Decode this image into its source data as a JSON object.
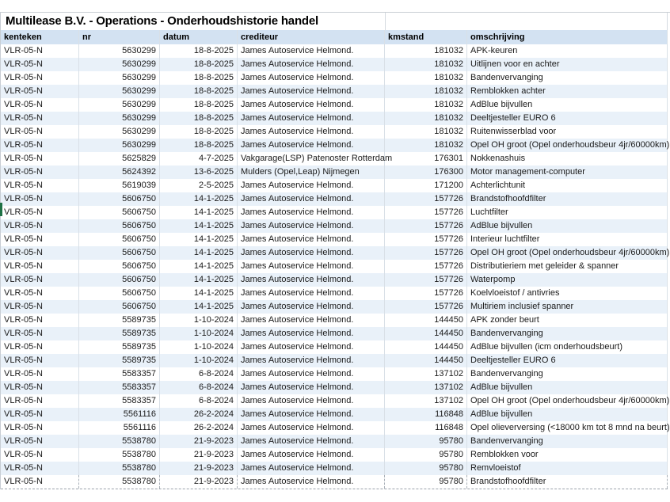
{
  "title": "Multilease B.V. - Operations - Onderhoudshistorie handel",
  "colors": {
    "header_bg": "#d3e2f2",
    "row_band_bg": "#e9f1f9",
    "grid_line": "#d9e0e7",
    "row_marker_green": "#1e7145"
  },
  "table": {
    "columns": [
      {
        "key": "kenteken",
        "label": "kenteken",
        "align": "left"
      },
      {
        "key": "nr",
        "label": "nr",
        "align": "right"
      },
      {
        "key": "datum",
        "label": "datum",
        "align": "right"
      },
      {
        "key": "crediteur",
        "label": "crediteur",
        "align": "left"
      },
      {
        "key": "kmstand",
        "label": "kmstand",
        "align": "right"
      },
      {
        "key": "omschrijving",
        "label": "omschrijving",
        "align": "left"
      }
    ],
    "header_align_override": {
      "nr": "left",
      "datum": "left",
      "kmstand": "left"
    },
    "rows": [
      [
        "VLR-05-N",
        "5630299",
        "18-8-2025",
        "James Autoservice Helmond.",
        "181032",
        "APK-keuren"
      ],
      [
        "VLR-05-N",
        "5630299",
        "18-8-2025",
        "James Autoservice Helmond.",
        "181032",
        "Uitlijnen voor en achter"
      ],
      [
        "VLR-05-N",
        "5630299",
        "18-8-2025",
        "James Autoservice Helmond.",
        "181032",
        "Bandenvervanging"
      ],
      [
        "VLR-05-N",
        "5630299",
        "18-8-2025",
        "James Autoservice Helmond.",
        "181032",
        "Remblokken achter"
      ],
      [
        "VLR-05-N",
        "5630299",
        "18-8-2025",
        "James Autoservice Helmond.",
        "181032",
        "AdBlue bijvullen"
      ],
      [
        "VLR-05-N",
        "5630299",
        "18-8-2025",
        "James Autoservice Helmond.",
        "181032",
        "Deeltjesteller EURO 6"
      ],
      [
        "VLR-05-N",
        "5630299",
        "18-8-2025",
        "James Autoservice Helmond.",
        "181032",
        "Ruitenwisserblad voor"
      ],
      [
        "VLR-05-N",
        "5630299",
        "18-8-2025",
        "James Autoservice Helmond.",
        "181032",
        "Opel OH groot (Opel onderhoudsbeur 4jr/60000km)"
      ],
      [
        "VLR-05-N",
        "5625829",
        "4-7-2025",
        "Vakgarage(LSP) Patenoster Rotterdam",
        "176301",
        "Nokkenashuis"
      ],
      [
        "VLR-05-N",
        "5624392",
        "13-6-2025",
        "Mulders (Opel,Leap) Nijmegen",
        "176300",
        "Motor management-computer"
      ],
      [
        "VLR-05-N",
        "5619039",
        "2-5-2025",
        "James Autoservice Helmond.",
        "171200",
        "Achterlichtunit"
      ],
      [
        "VLR-05-N",
        "5606750",
        "14-1-2025",
        "James Autoservice Helmond.",
        "157726",
        "Brandstofhoofdfilter"
      ],
      [
        "VLR-05-N",
        "5606750",
        "14-1-2025",
        "James Autoservice Helmond.",
        "157726",
        "Luchtfilter"
      ],
      [
        "VLR-05-N",
        "5606750",
        "14-1-2025",
        "James Autoservice Helmond.",
        "157726",
        "AdBlue bijvullen"
      ],
      [
        "VLR-05-N",
        "5606750",
        "14-1-2025",
        "James Autoservice Helmond.",
        "157726",
        "Interieur luchtfilter"
      ],
      [
        "VLR-05-N",
        "5606750",
        "14-1-2025",
        "James Autoservice Helmond.",
        "157726",
        "Opel OH groot (Opel onderhoudsbeur 4jr/60000km)"
      ],
      [
        "VLR-05-N",
        "5606750",
        "14-1-2025",
        "James Autoservice Helmond.",
        "157726",
        "Distributieriem met geleider & spanner"
      ],
      [
        "VLR-05-N",
        "5606750",
        "14-1-2025",
        "James Autoservice Helmond.",
        "157726",
        "Waterpomp"
      ],
      [
        "VLR-05-N",
        "5606750",
        "14-1-2025",
        "James Autoservice Helmond.",
        "157726",
        "Koelvloeistof / antivries"
      ],
      [
        "VLR-05-N",
        "5606750",
        "14-1-2025",
        "James Autoservice Helmond.",
        "157726",
        "Multiriem inclusief spanner"
      ],
      [
        "VLR-05-N",
        "5589735",
        "1-10-2024",
        "James Autoservice Helmond.",
        "144450",
        "APK zonder beurt"
      ],
      [
        "VLR-05-N",
        "5589735",
        "1-10-2024",
        "James Autoservice Helmond.",
        "144450",
        "Bandenvervanging"
      ],
      [
        "VLR-05-N",
        "5589735",
        "1-10-2024",
        "James Autoservice Helmond.",
        "144450",
        "AdBlue bijvullen (icm onderhoudsbeurt)"
      ],
      [
        "VLR-05-N",
        "5589735",
        "1-10-2024",
        "James Autoservice Helmond.",
        "144450",
        "Deeltjesteller EURO 6"
      ],
      [
        "VLR-05-N",
        "5583357",
        "6-8-2024",
        "James Autoservice Helmond.",
        "137102",
        "Bandenvervanging"
      ],
      [
        "VLR-05-N",
        "5583357",
        "6-8-2024",
        "James Autoservice Helmond.",
        "137102",
        "AdBlue bijvullen"
      ],
      [
        "VLR-05-N",
        "5583357",
        "6-8-2024",
        "James Autoservice Helmond.",
        "137102",
        "Opel OH groot (Opel onderhoudsbeur 4jr/60000km)"
      ],
      [
        "VLR-05-N",
        "5561116",
        "26-2-2024",
        "James Autoservice Helmond.",
        "116848",
        "AdBlue bijvullen"
      ],
      [
        "VLR-05-N",
        "5561116",
        "26-2-2024",
        "James Autoservice Helmond.",
        "116848",
        "Opel olieverversing (<18000 km tot 8 mnd na beurt)"
      ],
      [
        "VLR-05-N",
        "5538780",
        "21-9-2023",
        "James Autoservice Helmond.",
        "95780",
        "Bandenvervanging"
      ],
      [
        "VLR-05-N",
        "5538780",
        "21-9-2023",
        "James Autoservice Helmond.",
        "95780",
        "Remblokken voor"
      ],
      [
        "VLR-05-N",
        "5538780",
        "21-9-2023",
        "James Autoservice Helmond.",
        "95780",
        "Remvloeistof"
      ],
      [
        "VLR-05-N",
        "5538780",
        "21-9-2023",
        "James Autoservice Helmond.",
        "95780",
        "Brandstofhoofdfilter"
      ]
    ]
  }
}
